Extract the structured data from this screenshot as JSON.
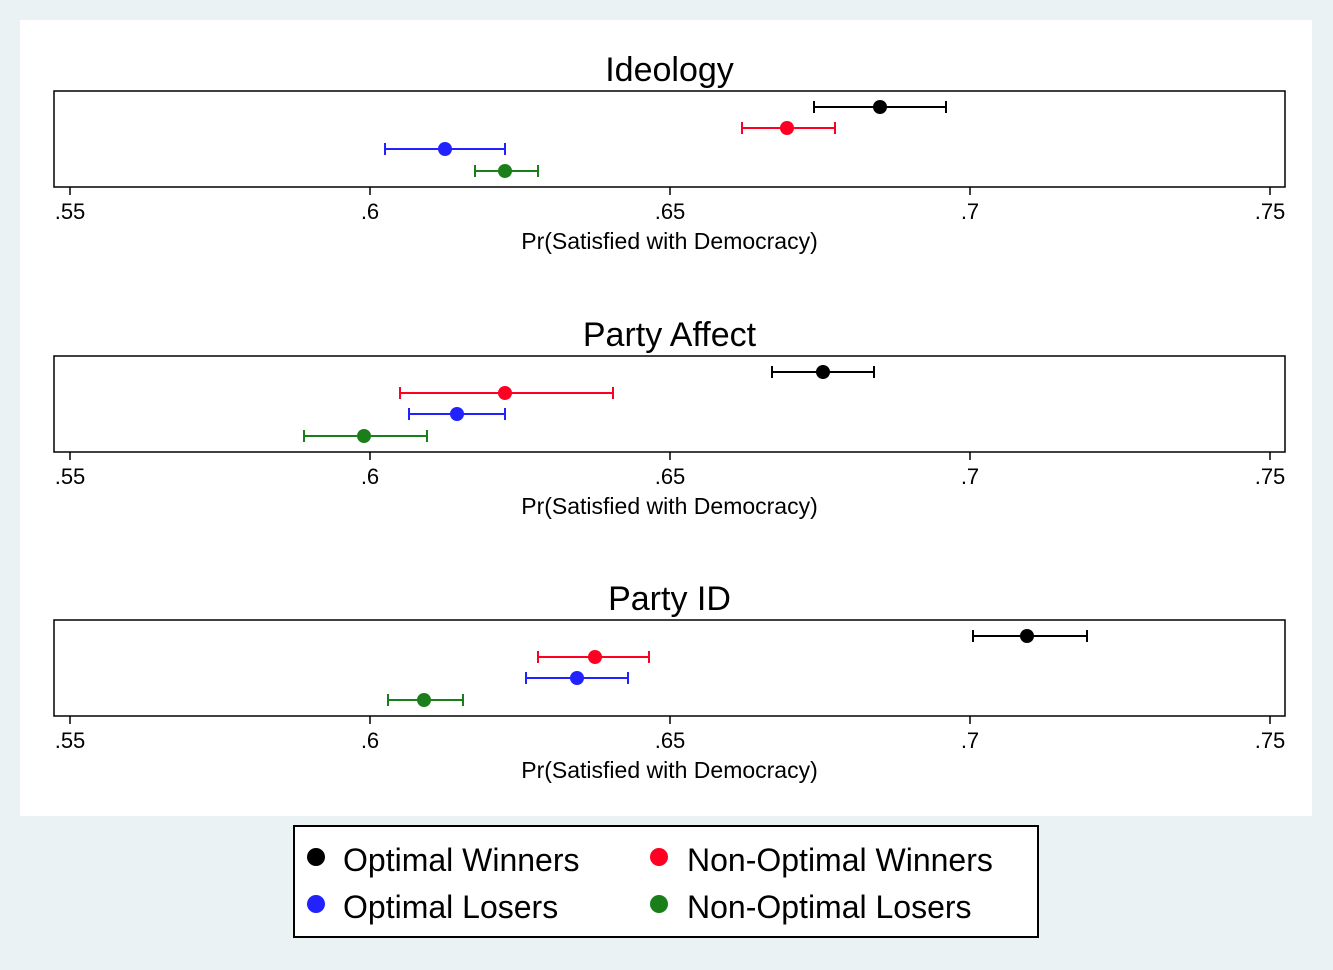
{
  "chart_data": [
    {
      "type": "scatter",
      "subtype": "coefficient-plot-with-error-bars",
      "title": "Ideology",
      "xlabel": "Pr(Satisfied with Democracy)",
      "xlim": [
        0.55,
        0.75
      ],
      "x_ticks": [
        0.55,
        0.6,
        0.65,
        0.7,
        0.75
      ],
      "x_tick_labels": [
        ".55",
        ".6",
        ".65",
        ".7",
        ".75"
      ],
      "grid": false,
      "series": [
        {
          "name": "Optimal Winners",
          "color": "#000000",
          "x": 0.685,
          "lo": 0.674,
          "hi": 0.696
        },
        {
          "name": "Non-Optimal Winners",
          "color": "#ff0022",
          "x": 0.6695,
          "lo": 0.662,
          "hi": 0.6775
        },
        {
          "name": "Optimal Losers",
          "color": "#2222ff",
          "x": 0.6125,
          "lo": 0.6025,
          "hi": 0.6225
        },
        {
          "name": "Non-Optimal Losers",
          "color": "#1a7f1a",
          "x": 0.6225,
          "lo": 0.6175,
          "hi": 0.628
        }
      ]
    },
    {
      "type": "scatter",
      "subtype": "coefficient-plot-with-error-bars",
      "title": "Party Affect",
      "xlabel": "Pr(Satisfied with Democracy)",
      "xlim": [
        0.55,
        0.75
      ],
      "x_ticks": [
        0.55,
        0.6,
        0.65,
        0.7,
        0.75
      ],
      "x_tick_labels": [
        ".55",
        ".6",
        ".65",
        ".7",
        ".75"
      ],
      "grid": false,
      "series": [
        {
          "name": "Optimal Winners",
          "color": "#000000",
          "x": 0.6755,
          "lo": 0.667,
          "hi": 0.684
        },
        {
          "name": "Non-Optimal Winners",
          "color": "#ff0022",
          "x": 0.6225,
          "lo": 0.605,
          "hi": 0.6405
        },
        {
          "name": "Optimal Losers",
          "color": "#2222ff",
          "x": 0.6145,
          "lo": 0.6065,
          "hi": 0.6225
        },
        {
          "name": "Non-Optimal Losers",
          "color": "#1a7f1a",
          "x": 0.599,
          "lo": 0.589,
          "hi": 0.6095
        }
      ]
    },
    {
      "type": "scatter",
      "subtype": "coefficient-plot-with-error-bars",
      "title": "Party ID",
      "xlabel": "Pr(Satisfied with Democracy)",
      "xlim": [
        0.55,
        0.75
      ],
      "x_ticks": [
        0.55,
        0.6,
        0.65,
        0.7,
        0.75
      ],
      "x_tick_labels": [
        ".55",
        ".6",
        ".65",
        ".7",
        ".75"
      ],
      "grid": false,
      "series": [
        {
          "name": "Optimal Winners",
          "color": "#000000",
          "x": 0.7095,
          "lo": 0.7005,
          "hi": 0.7195
        },
        {
          "name": "Non-Optimal Winners",
          "color": "#ff0022",
          "x": 0.6375,
          "lo": 0.628,
          "hi": 0.6465
        },
        {
          "name": "Optimal Losers",
          "color": "#2222ff",
          "x": 0.6345,
          "lo": 0.626,
          "hi": 0.643
        },
        {
          "name": "Non-Optimal Losers",
          "color": "#1a7f1a",
          "x": 0.609,
          "lo": 0.603,
          "hi": 0.6155
        }
      ]
    }
  ],
  "legend": {
    "placement": "bottom-center",
    "items": [
      {
        "label": "Optimal Winners",
        "color": "#000000"
      },
      {
        "label": "Non-Optimal Winners",
        "color": "#ff0022"
      },
      {
        "label": "Optimal Losers",
        "color": "#2222ff"
      },
      {
        "label": "Non-Optimal Losers",
        "color": "#1a7f1a"
      }
    ]
  },
  "colors": {
    "outer_background": "#eaf2f3",
    "plot_background": "#ffffff"
  }
}
